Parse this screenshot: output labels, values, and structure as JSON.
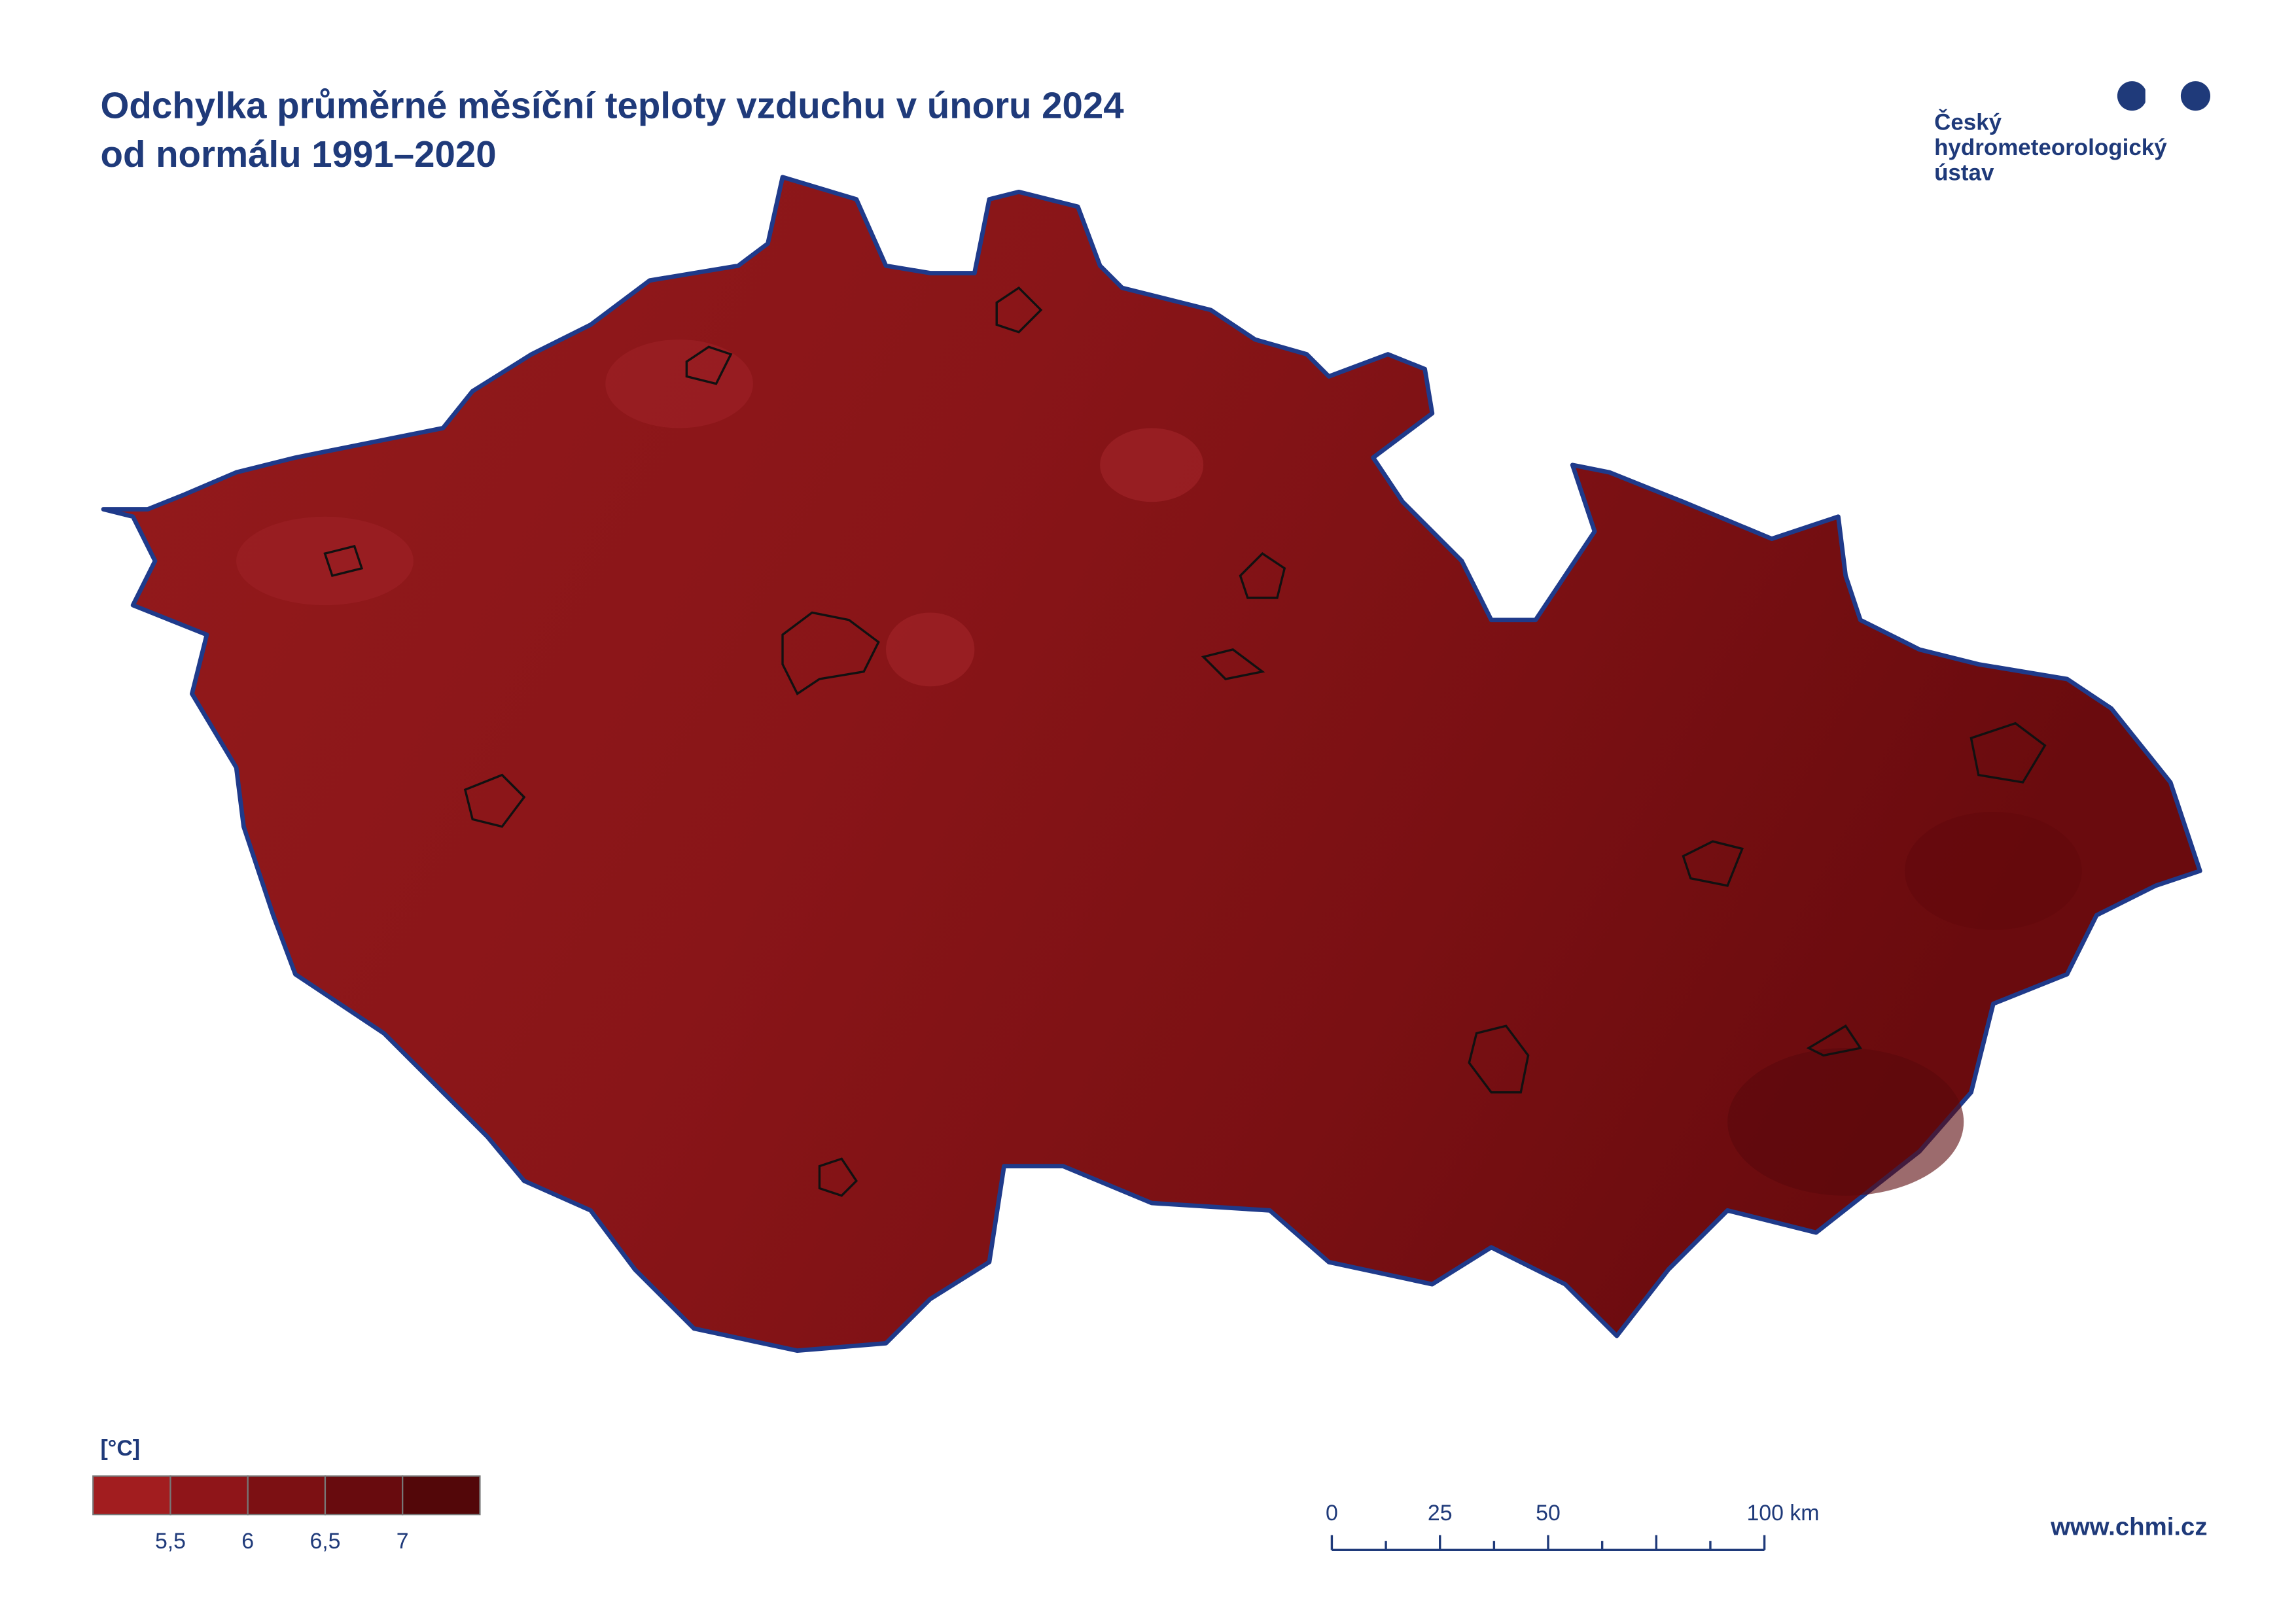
{
  "header": {
    "title_lines": [
      "Odchylka průměrné měsíční teploty vzduchu v únoru 2024",
      "od normálu 1991–2020"
    ]
  },
  "logo": {
    "lines": [
      "Český",
      "hydrometeorologický",
      "ústav"
    ]
  },
  "legend": {
    "unit": "[°C]",
    "colors": [
      "#a21d1f",
      "#8f1519",
      "#7c1013",
      "#680b0e",
      "#530709"
    ],
    "labels": [
      "5,5",
      "6",
      "6,5",
      "7"
    ]
  },
  "scale_bar": {
    "labels": [
      "0",
      "25",
      "50",
      "100 km"
    ]
  },
  "footer": {
    "url": "www.chmi.cz"
  }
}
